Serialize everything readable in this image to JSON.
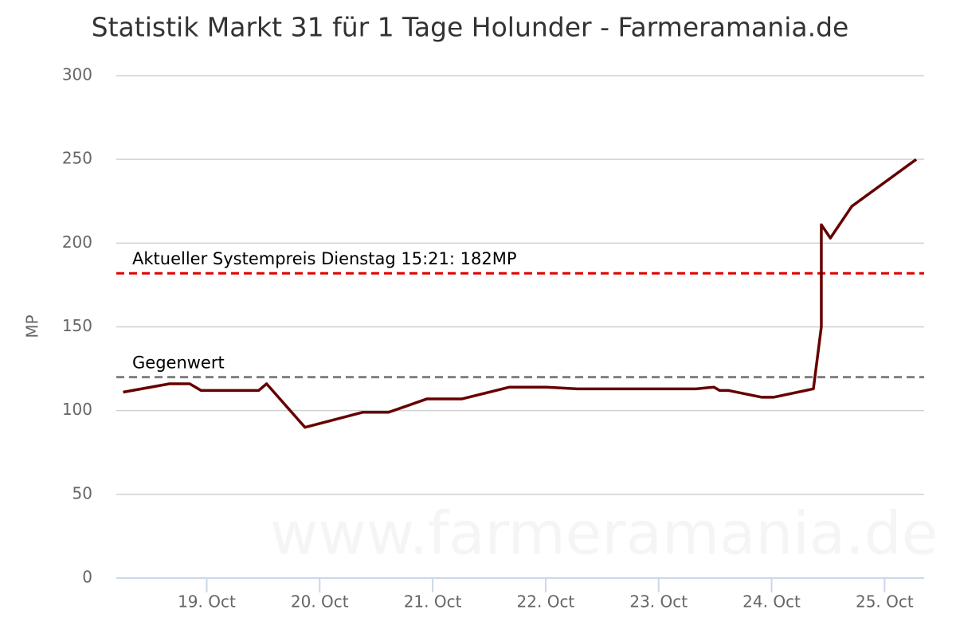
{
  "chart_data": {
    "type": "line",
    "title": "Statistik Markt 31 für 1 Tage Holunder - Farmeramania.de",
    "y_label": "MP",
    "watermark": "www.farmeramania.de",
    "x": [
      18.26,
      18.67,
      18.85,
      18.95,
      19.46,
      19.53,
      19.87,
      20.38,
      20.61,
      20.95,
      21.26,
      21.68,
      22.01,
      22.28,
      23.33,
      23.49,
      23.54,
      23.62,
      23.91,
      24.02,
      24.37,
      24.44,
      24.44,
      24.52,
      24.71,
      25.28
    ],
    "series": [
      {
        "name": "Holunder",
        "color": "#660000",
        "values": [
          111,
          116,
          116,
          112,
          112,
          116,
          90,
          99,
          99,
          107,
          107,
          114,
          114,
          113,
          113,
          114,
          112,
          112,
          108,
          108,
          113,
          150,
          211,
          203,
          222,
          250
        ]
      }
    ],
    "annotations": [
      {
        "label": "Aktueller Systempreis Dienstag 15:21: 182MP",
        "value": 182,
        "color": "#e00000"
      },
      {
        "label": "Gegenwert",
        "value": 120,
        "color": "#808080"
      }
    ],
    "xlim": [
      18.2,
      25.35
    ],
    "xticks": [
      {
        "value": 19,
        "label": "19. Oct"
      },
      {
        "value": 20,
        "label": "20. Oct"
      },
      {
        "value": 21,
        "label": "21. Oct"
      },
      {
        "value": 22,
        "label": "22. Oct"
      },
      {
        "value": 23,
        "label": "23. Oct"
      },
      {
        "value": 24,
        "label": "24. Oct"
      },
      {
        "value": 25,
        "label": "25. Oct"
      }
    ],
    "ylim": [
      0,
      300
    ],
    "yticks": [
      0,
      50,
      100,
      150,
      200,
      250,
      300
    ],
    "grid": true
  }
}
